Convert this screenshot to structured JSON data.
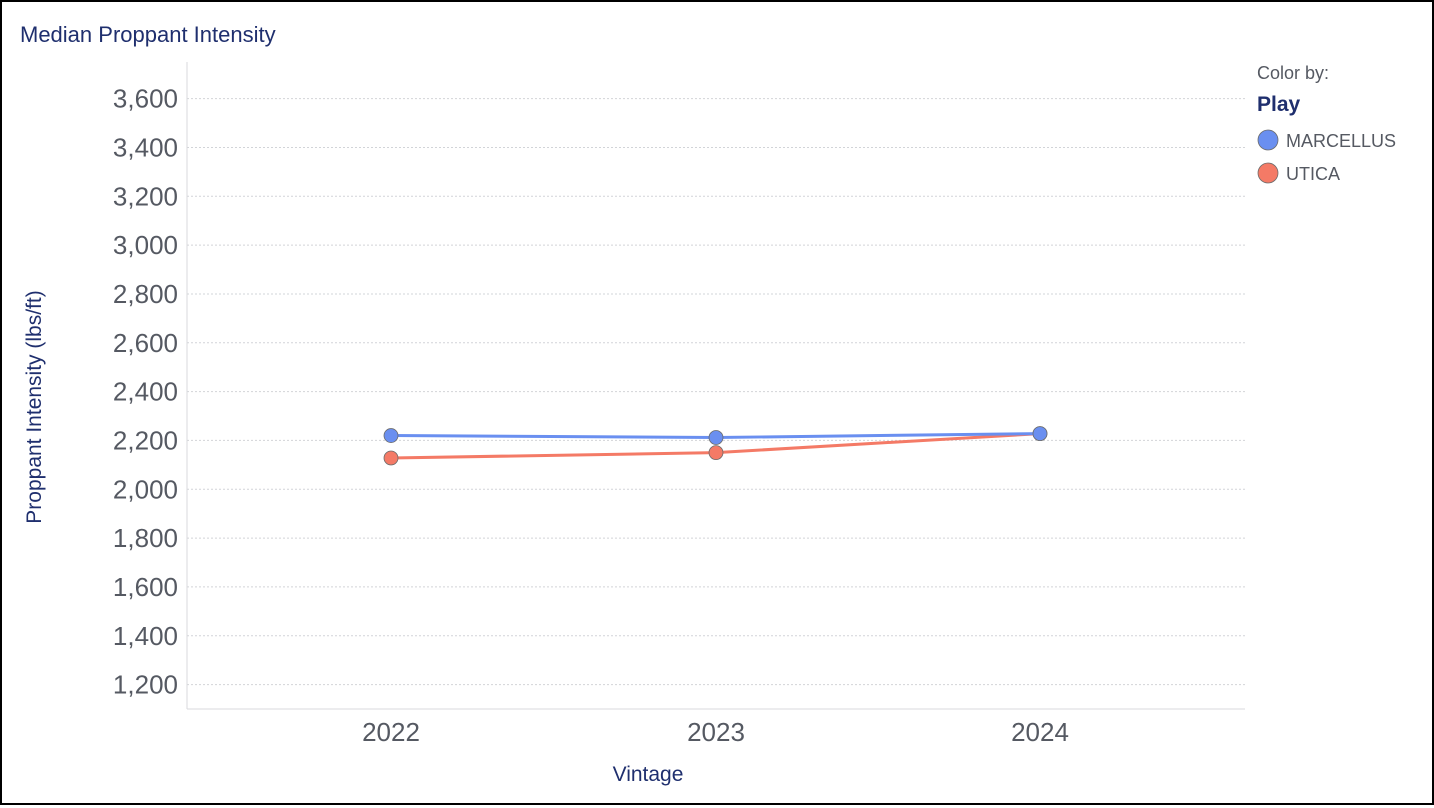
{
  "chart_data": {
    "type": "line",
    "title": "Median Proppant Intensity",
    "xlabel": "Vintage",
    "ylabel": "Proppant Intensity (lbs/ft)",
    "categories": [
      "2022",
      "2023",
      "2024"
    ],
    "ylim": [
      1100,
      3750
    ],
    "yticks": [
      1200,
      1400,
      1600,
      1800,
      2000,
      2200,
      2400,
      2600,
      2800,
      3000,
      3200,
      3400,
      3600
    ],
    "ytick_labels": [
      "1,200",
      "1,400",
      "1,600",
      "1,800",
      "2,000",
      "2,200",
      "2,400",
      "2,600",
      "2,800",
      "3,000",
      "3,200",
      "3,400",
      "3,600"
    ],
    "grid": true,
    "series": [
      {
        "name": "MARCELLUS",
        "color": "#6a8ff0",
        "values": [
          2220,
          2212,
          2228
        ]
      },
      {
        "name": "UTICA",
        "color": "#f47a66",
        "values": [
          2128,
          2150,
          2228
        ]
      }
    ],
    "legend": {
      "placement": "top-right",
      "header": "Color by:",
      "title": "Play"
    }
  }
}
